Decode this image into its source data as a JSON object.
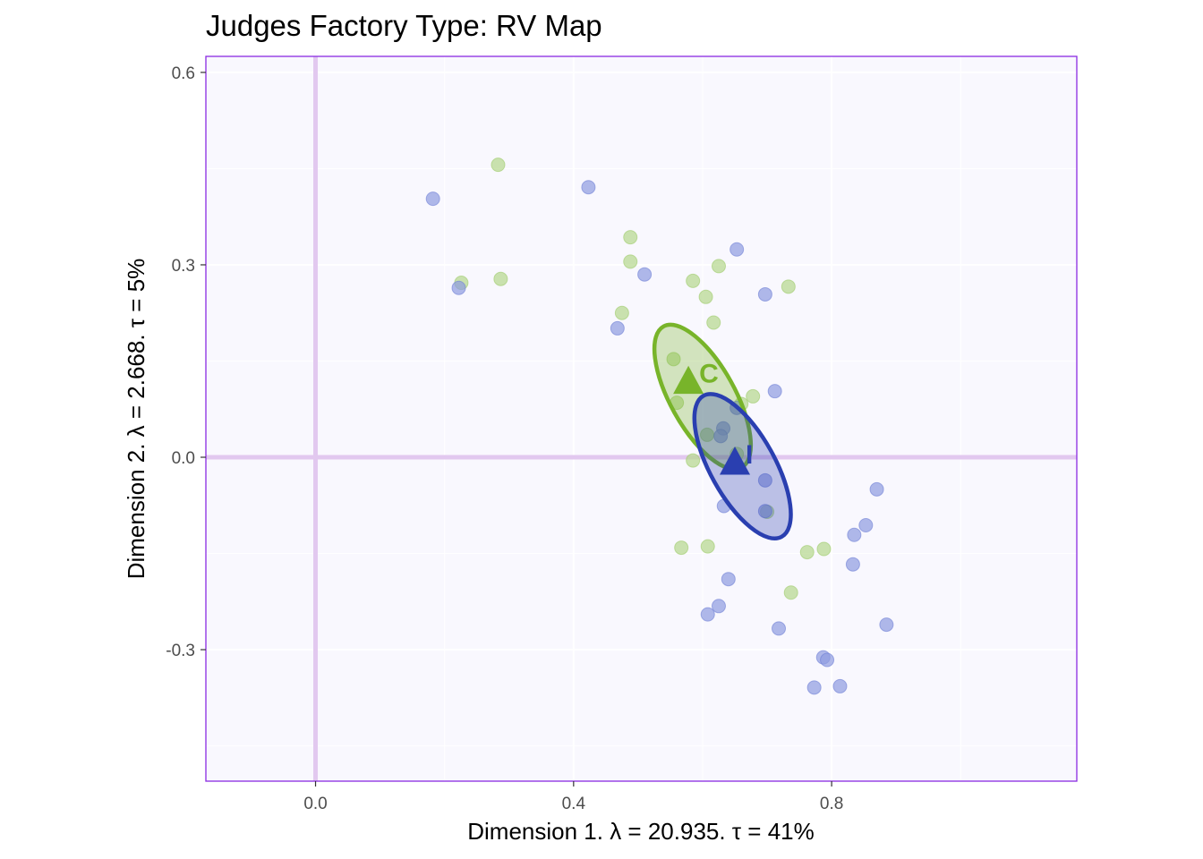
{
  "chart_data": {
    "type": "scatter",
    "title": "Judges Factory Type: RV Map",
    "xlabel": "Dimension 1.   λ = 20.935.  τ = 41%",
    "ylabel": "Dimension 2.   λ = 2.668.  τ = 5%",
    "xlim": [
      -0.17,
      1.18
    ],
    "ylim": [
      -0.505,
      0.625
    ],
    "x_ticks": [
      0.0,
      0.4,
      0.8
    ],
    "x_tick_labels": [
      "0.0",
      "0.4",
      "0.8"
    ],
    "y_ticks": [
      0.6,
      0.3,
      0.0,
      -0.3
    ],
    "y_tick_labels": [
      "0.6",
      "0.3",
      "0.0",
      "-0.3"
    ],
    "origin_lines": true,
    "colors": {
      "C": "#78b42a",
      "I": "#2a3fb0",
      "C_point": "#b5d78c",
      "I_point": "#8e9be0",
      "panel_bg": "#f9f8fe",
      "panel_border": "#8a2be2",
      "origin_line": "#e2c8ef"
    },
    "series": [
      {
        "name": "C",
        "color": "#78b42a",
        "points": [
          [
            0.283,
            0.456
          ],
          [
            0.226,
            0.272
          ],
          [
            0.287,
            0.278
          ],
          [
            0.488,
            0.343
          ],
          [
            0.488,
            0.305
          ],
          [
            0.475,
            0.225
          ],
          [
            0.585,
            0.275
          ],
          [
            0.625,
            0.298
          ],
          [
            0.605,
            0.25
          ],
          [
            0.617,
            0.21
          ],
          [
            0.733,
            0.266
          ],
          [
            0.555,
            0.153
          ],
          [
            0.66,
            0.083
          ],
          [
            0.678,
            0.095
          ],
          [
            0.56,
            0.085
          ],
          [
            0.607,
            0.035
          ],
          [
            0.585,
            -0.005
          ],
          [
            0.653,
            0.005
          ],
          [
            0.567,
            -0.141
          ],
          [
            0.608,
            -0.139
          ],
          [
            0.762,
            -0.148
          ],
          [
            0.788,
            -0.143
          ],
          [
            0.737,
            -0.211
          ],
          [
            0.7,
            -0.085
          ]
        ]
      },
      {
        "name": "I",
        "color": "#2a3fb0",
        "points": [
          [
            0.182,
            0.403
          ],
          [
            0.423,
            0.421
          ],
          [
            0.222,
            0.264
          ],
          [
            0.51,
            0.285
          ],
          [
            0.468,
            0.201
          ],
          [
            0.653,
            0.324
          ],
          [
            0.697,
            0.254
          ],
          [
            0.712,
            0.103
          ],
          [
            0.653,
            0.077
          ],
          [
            0.632,
            0.045
          ],
          [
            0.628,
            0.033
          ],
          [
            0.697,
            -0.036
          ],
          [
            0.633,
            -0.076
          ],
          [
            0.697,
            -0.084
          ],
          [
            0.87,
            -0.05
          ],
          [
            0.853,
            -0.106
          ],
          [
            0.835,
            -0.121
          ],
          [
            0.833,
            -0.167
          ],
          [
            0.64,
            -0.19
          ],
          [
            0.625,
            -0.232
          ],
          [
            0.608,
            -0.245
          ],
          [
            0.718,
            -0.267
          ],
          [
            0.885,
            -0.261
          ],
          [
            0.787,
            -0.312
          ],
          [
            0.793,
            -0.316
          ],
          [
            0.773,
            -0.359
          ],
          [
            0.813,
            -0.357
          ]
        ]
      }
    ],
    "group_means": [
      {
        "name": "C",
        "x": 0.578,
        "y": 0.119,
        "label": "C"
      },
      {
        "name": "I",
        "x": 0.65,
        "y": -0.007,
        "label": "I"
      }
    ],
    "confidence_ellipses": [
      {
        "name": "C",
        "cx": 0.6,
        "cy": 0.094,
        "semi_major": 0.125,
        "semi_minor": 0.05,
        "angle_deg": 119
      },
      {
        "name": "I",
        "cx": 0.662,
        "cy": -0.014,
        "semi_major": 0.125,
        "semi_minor": 0.05,
        "angle_deg": 119
      }
    ]
  }
}
